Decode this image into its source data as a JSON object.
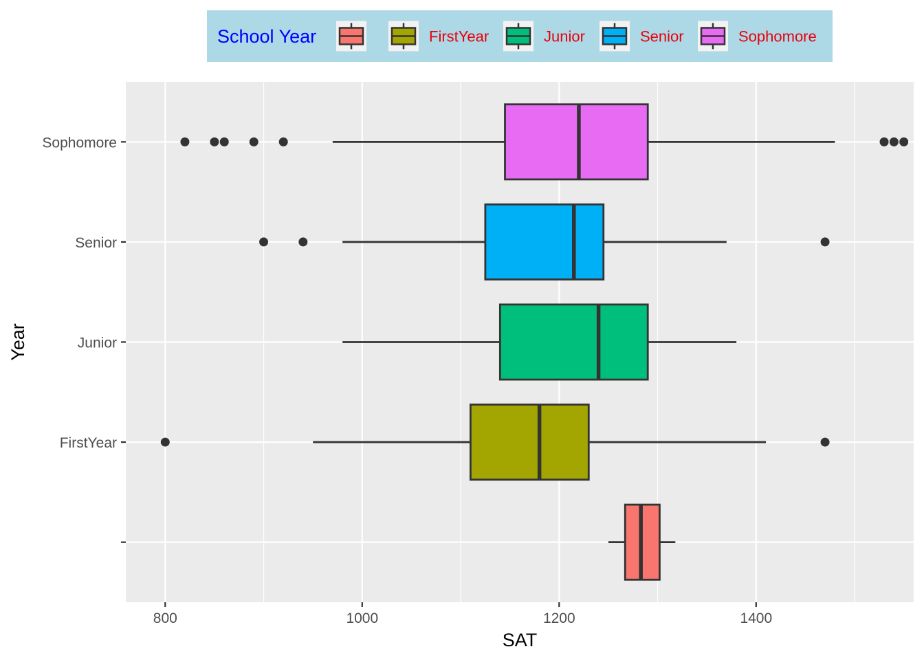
{
  "chart_data": {
    "type": "boxplot",
    "orientation": "horizontal",
    "xlabel": "SAT",
    "ylabel": "Year",
    "xlim": [
      760,
      1560
    ],
    "x_ticks": [
      800,
      1000,
      1200,
      1400
    ],
    "x_tick_labels": [
      "800",
      "1000",
      "1200",
      "1400"
    ],
    "categories": [
      "",
      "FirstYear",
      "Junior",
      "Senior",
      "Sophomore"
    ],
    "grid": true,
    "legend": {
      "title": "School Year",
      "placement": "top",
      "background": "#ADD8E6",
      "title_color": "#0000FF",
      "label_color": "#E8000B",
      "entries": [
        "",
        "FirstYear",
        "Junior",
        "Senior",
        "Sophomore"
      ]
    },
    "series": [
      {
        "category": "",
        "color": "#F8766D",
        "whisker_low": 1250,
        "q1": 1267,
        "median": 1283,
        "q3": 1302,
        "whisker_high": 1318,
        "outliers": []
      },
      {
        "category": "FirstYear",
        "color": "#A3A500",
        "whisker_low": 950,
        "q1": 1110,
        "median": 1180,
        "q3": 1230,
        "whisker_high": 1410,
        "outliers": [
          800,
          1470
        ]
      },
      {
        "category": "Junior",
        "color": "#00BF7D",
        "whisker_low": 980,
        "q1": 1140,
        "median": 1240,
        "q3": 1290,
        "whisker_high": 1380,
        "outliers": []
      },
      {
        "category": "Senior",
        "color": "#00B0F6",
        "whisker_low": 980,
        "q1": 1125,
        "median": 1215,
        "q3": 1245,
        "whisker_high": 1370,
        "outliers": [
          900,
          940,
          1470
        ]
      },
      {
        "category": "Sophomore",
        "color": "#E76BF3",
        "whisker_low": 970,
        "q1": 1145,
        "median": 1220,
        "q3": 1290,
        "whisker_high": 1480,
        "outliers": [
          820,
          850,
          860,
          890,
          920,
          1530,
          1540,
          1550
        ]
      }
    ]
  }
}
